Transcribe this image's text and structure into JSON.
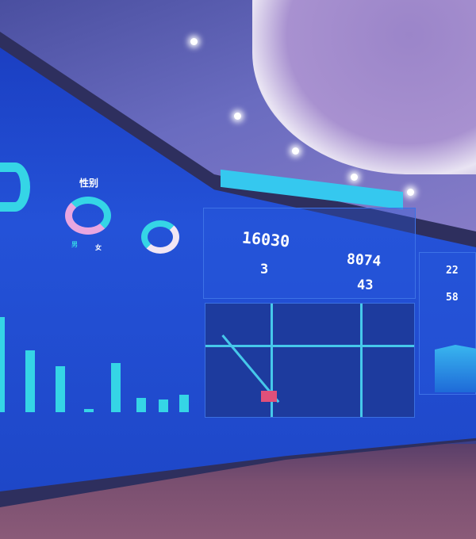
{
  "scene": {
    "colors": {
      "screen": "#2452d8",
      "accent": "#35d5e6",
      "pink": "#e9a6e0"
    }
  },
  "dashboard": {
    "gender_title": "性别",
    "gender_legend": [
      "男",
      "女"
    ],
    "stats": [
      {
        "value": "16030"
      },
      {
        "value": "3"
      },
      {
        "value": "8074"
      },
      {
        "value": "43"
      }
    ],
    "right_stats": [
      {
        "value": "22"
      },
      {
        "value": "58"
      }
    ]
  }
}
